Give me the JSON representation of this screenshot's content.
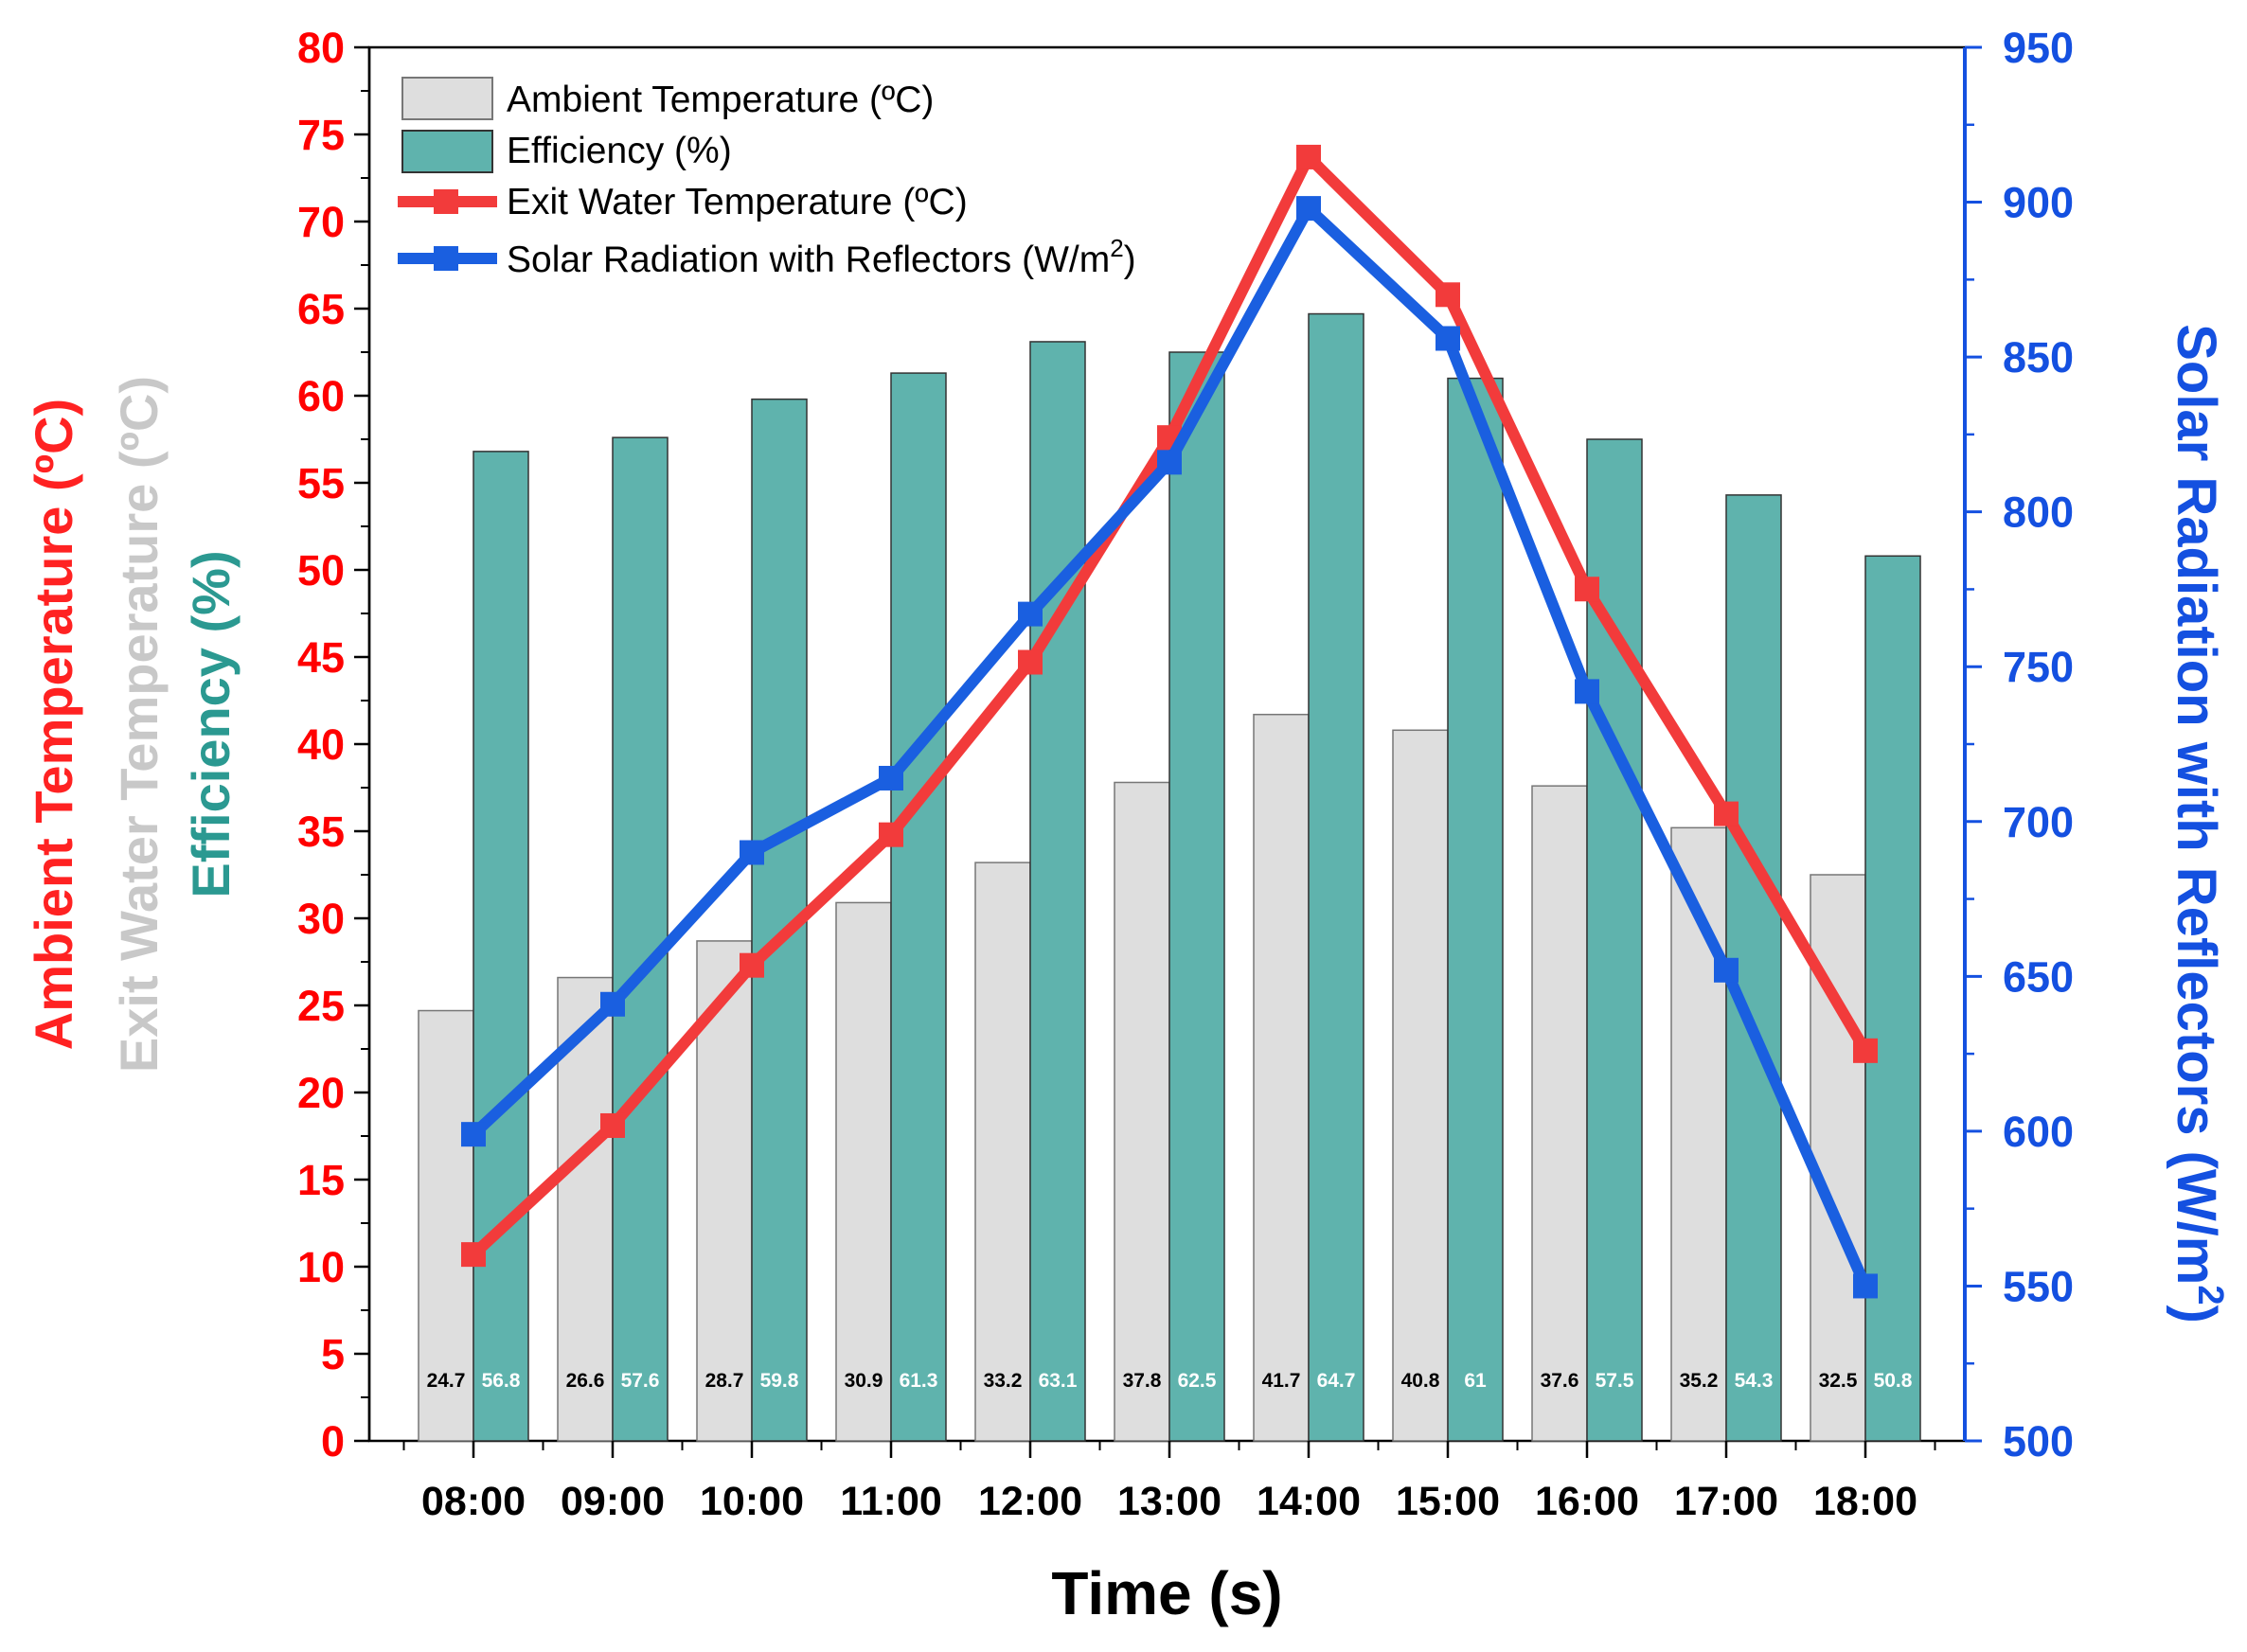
{
  "chart_data": {
    "type": "bar",
    "xlabel": "Time (s)",
    "categories": [
      "08:00",
      "09:00",
      "10:00",
      "11:00",
      "12:00",
      "13:00",
      "14:00",
      "15:00",
      "16:00",
      "17:00",
      "18:00"
    ],
    "left_axis": {
      "labels": [
        {
          "text": "Ambient Temperature (ºC)",
          "color": "#ff2222"
        },
        {
          "text": "Exit Water Temperature (ºC)",
          "color": "#c8c8c8"
        },
        {
          "text": "Efficiency (%)",
          "color": "#2b9991"
        }
      ],
      "ylim": [
        0,
        80
      ],
      "ticks": [
        0,
        5,
        10,
        15,
        20,
        25,
        30,
        35,
        40,
        45,
        50,
        55,
        60,
        65,
        70,
        75,
        80
      ],
      "tick_color": "#ff0000"
    },
    "right_axis": {
      "label": "Solar Radiation with Reflectors (W/m",
      "label_sup": "2",
      "label_close": ")",
      "ylim": [
        500,
        950
      ],
      "ticks": [
        500,
        550,
        600,
        650,
        700,
        750,
        800,
        850,
        900,
        950
      ],
      "color": "#1450e0"
    },
    "series": [
      {
        "name": "Ambient Temperature (ºC)",
        "kind": "bar",
        "axis": "left",
        "color": "#dedede",
        "stroke": "#777777",
        "values": [
          24.7,
          26.6,
          28.7,
          30.9,
          33.2,
          37.8,
          41.7,
          40.8,
          37.6,
          35.2,
          32.5
        ],
        "labels": [
          "24.7",
          "26.6",
          "28.7",
          "30.9",
          "33.2",
          "37.8",
          "41.7",
          "40.8",
          "37.6",
          "35.2",
          "32.5"
        ],
        "label_color": "#000000"
      },
      {
        "name": "Efficiency (%)",
        "kind": "bar",
        "axis": "left",
        "color": "#5fb3ad",
        "stroke": "#333333",
        "values": [
          56.8,
          57.6,
          59.8,
          61.3,
          63.1,
          62.5,
          64.7,
          61,
          57.5,
          54.3,
          50.8
        ],
        "labels": [
          "56.8",
          "57.6",
          "59.8",
          "61.3",
          "63.1",
          "62.5",
          "64.7",
          "61",
          "57.5",
          "54.3",
          "50.8"
        ],
        "label_color": "#ffffff"
      },
      {
        "name": "Exit Water Temperature (ºC)",
        "kind": "line",
        "axis": "left",
        "color": "#f23b3b",
        "values": [
          10.7,
          18.1,
          27.3,
          34.8,
          44.7,
          57.6,
          73.7,
          65.8,
          48.9,
          36.0,
          22.4
        ]
      },
      {
        "name": "Solar Radiation with Reflectors (W/m",
        "name_sup": "2",
        "name_close": ")",
        "kind": "line",
        "axis": "right",
        "color": "#1a5fe0",
        "values": [
          599,
          641,
          690,
          714,
          767,
          816,
          898,
          856,
          742,
          652,
          550
        ]
      }
    ],
    "legend": {
      "position": "top-left",
      "entries": [
        {
          "text": "Ambient Temperature (ºC)",
          "sup": ""
        },
        {
          "text": "Efficiency (%)",
          "sup": ""
        },
        {
          "text": "Exit Water Temperature (ºC)",
          "sup": ""
        },
        {
          "text": "Solar Radiation with Reflectors (W/m",
          "sup": "2",
          "close": ")"
        }
      ]
    }
  }
}
